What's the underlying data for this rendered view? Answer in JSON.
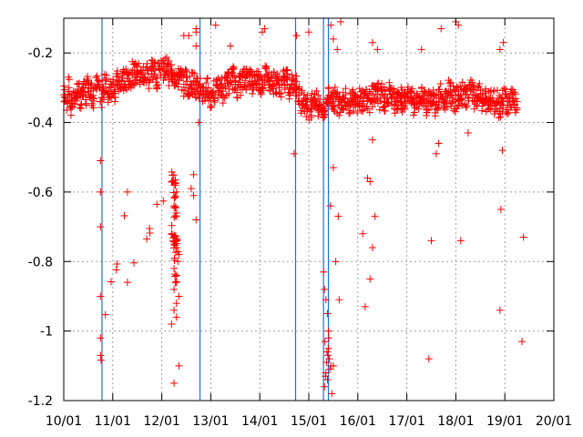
{
  "chart_data": {
    "type": "scatter",
    "title": "",
    "xlabel": "",
    "ylabel": "",
    "xlim": [
      "10/01",
      "20/01"
    ],
    "ylim": [
      -1.2,
      -0.1
    ],
    "x_ticks": [
      "10/01",
      "11/01",
      "12/01",
      "13/01",
      "14/01",
      "15/01",
      "16/01",
      "17/01",
      "18/01",
      "19/01",
      "20/01"
    ],
    "y_ticks": [
      -0.2,
      -0.4,
      -0.6,
      -0.8,
      -1,
      -1.2
    ],
    "y_tick_labels": [
      "-0.2",
      "-0.4",
      "-0.6",
      "-0.8",
      "-1",
      "-1.2"
    ],
    "grid": true,
    "marker": "+",
    "series": [
      {
        "color": "#ff0000",
        "values_x_day": [
          10.0,
          10.05,
          10.1,
          10.15,
          10.2,
          10.25,
          10.3,
          10.35,
          10.4,
          10.45,
          10.5,
          10.55,
          10.6,
          10.65,
          10.7,
          10.75,
          10.8,
          10.85,
          10.9,
          10.95,
          11.0,
          11.05,
          11.1,
          11.15,
          11.2,
          11.25,
          11.3,
          11.35,
          11.4,
          11.45,
          11.5,
          11.55,
          11.6,
          11.65,
          11.7,
          11.75,
          11.8,
          11.85,
          11.9,
          11.95,
          12.0,
          12.05,
          12.1,
          12.15,
          12.2,
          12.25,
          12.3,
          12.35,
          12.4,
          12.45,
          12.5,
          12.55,
          12.6,
          12.65,
          12.7,
          12.75,
          12.8,
          12.85,
          12.9,
          12.95,
          13.0,
          13.05,
          13.1,
          13.15,
          13.2,
          13.25,
          13.3,
          13.35,
          13.4,
          13.45,
          13.5,
          13.55,
          13.6,
          13.65,
          13.7,
          13.75,
          13.8,
          13.85,
          13.9,
          13.95,
          14.0,
          14.05,
          14.1,
          14.15,
          14.2,
          14.25,
          14.3,
          14.35,
          14.4,
          14.45,
          14.5,
          14.55,
          14.6,
          14.65,
          14.7,
          14.75,
          14.8,
          14.85,
          14.9,
          14.95,
          15.0,
          15.05,
          15.1,
          15.15,
          15.2,
          15.25,
          15.3,
          15.35,
          15.4,
          15.45,
          15.5,
          15.55,
          15.6,
          15.65,
          15.7,
          15.75,
          15.8,
          15.85,
          15.9,
          15.95,
          16.0,
          16.05,
          16.1,
          16.15,
          16.2,
          16.25,
          16.3,
          16.35,
          16.4,
          16.45,
          16.5,
          16.55,
          16.6,
          16.65,
          16.7,
          16.75,
          16.8,
          16.85,
          16.9,
          16.95,
          17.0,
          17.05,
          17.1,
          17.15,
          17.2,
          17.25,
          17.3,
          17.35,
          17.4,
          17.45,
          17.5,
          17.55,
          17.6,
          17.65,
          17.7,
          17.75,
          17.8,
          17.85,
          17.9,
          17.95,
          18.0,
          18.05,
          18.1,
          18.15,
          18.2,
          18.25,
          18.3,
          18.35,
          18.4,
          18.45,
          18.5,
          18.55,
          18.6,
          18.65,
          18.7,
          18.75,
          18.8,
          18.85,
          18.9,
          18.95,
          19.0,
          19.05,
          19.1,
          19.15,
          19.2,
          19.25,
          10.75,
          10.75,
          10.75,
          10.75,
          10.75,
          10.75,
          11.3,
          11.3,
          12.2,
          12.25,
          12.3,
          12.25,
          12.3,
          12.2,
          12.25,
          12.3,
          12.35,
          12.25,
          12.3,
          12.3,
          12.25,
          12.35,
          12.3,
          12.25,
          12.3,
          12.2,
          12.35,
          12.25,
          12.3,
          12.45,
          12.6,
          12.65,
          12.7,
          12.7,
          12.7,
          12.75,
          12.65,
          15.3,
          15.32,
          15.35,
          15.38,
          15.4,
          15.33,
          15.37,
          15.42,
          15.45,
          15.35,
          15.38,
          15.32,
          15.4,
          15.36,
          15.43,
          15.34,
          15.39,
          15.41,
          15.47,
          15.5,
          15.55,
          15.6,
          15.62,
          15.44,
          15.5,
          15.58,
          14.7,
          14.75,
          16.1,
          16.15,
          16.2,
          16.25,
          16.3,
          16.35,
          16.4,
          16.25,
          16.3,
          17.4,
          17.45,
          17.5,
          17.6,
          17.65,
          17.7,
          18.05,
          18.1,
          18.25,
          18.9,
          18.92,
          18.95,
          18.9,
          18.97,
          19.35,
          19.38,
          12.55,
          12.7,
          13.1,
          13.4,
          14.05,
          14.1,
          15.0,
          15.45,
          15.5,
          15.65,
          16.3,
          17.3,
          18.0
        ],
        "values_y": [
          -0.32,
          -0.34,
          -0.3,
          -0.36,
          -0.31,
          -0.33,
          -0.29,
          -0.35,
          -0.3,
          -0.32,
          -0.28,
          -0.31,
          -0.33,
          -0.3,
          -0.29,
          -0.34,
          -0.31,
          -0.28,
          -0.32,
          -0.3,
          -0.29,
          -0.31,
          -0.28,
          -0.3,
          -0.27,
          -0.29,
          -0.26,
          -0.28,
          -0.25,
          -0.27,
          -0.24,
          -0.28,
          -0.26,
          -0.27,
          -0.25,
          -0.28,
          -0.24,
          -0.26,
          -0.27,
          -0.25,
          -0.23,
          -0.25,
          -0.24,
          -0.26,
          -0.25,
          -0.27,
          -0.26,
          -0.28,
          -0.27,
          -0.29,
          -0.27,
          -0.3,
          -0.29,
          -0.28,
          -0.3,
          -0.31,
          -0.3,
          -0.32,
          -0.31,
          -0.3,
          -0.33,
          -0.31,
          -0.32,
          -0.3,
          -0.29,
          -0.31,
          -0.3,
          -0.28,
          -0.29,
          -0.27,
          -0.28,
          -0.3,
          -0.29,
          -0.27,
          -0.28,
          -0.26,
          -0.27,
          -0.29,
          -0.28,
          -0.27,
          -0.29,
          -0.28,
          -0.27,
          -0.26,
          -0.28,
          -0.27,
          -0.29,
          -0.28,
          -0.3,
          -0.29,
          -0.28,
          -0.27,
          -0.3,
          -0.29,
          -0.28,
          -0.3,
          -0.32,
          -0.34,
          -0.33,
          -0.35,
          -0.36,
          -0.35,
          -0.33,
          -0.34,
          -0.36,
          -0.35,
          -0.37,
          -0.34,
          -0.33,
          -0.32,
          -0.34,
          -0.33,
          -0.35,
          -0.34,
          -0.33,
          -0.32,
          -0.34,
          -0.35,
          -0.33,
          -0.34,
          -0.35,
          -0.33,
          -0.34,
          -0.32,
          -0.33,
          -0.34,
          -0.32,
          -0.33,
          -0.31,
          -0.33,
          -0.32,
          -0.34,
          -0.33,
          -0.31,
          -0.32,
          -0.34,
          -0.33,
          -0.32,
          -0.34,
          -0.33,
          -0.32,
          -0.34,
          -0.33,
          -0.35,
          -0.32,
          -0.34,
          -0.33,
          -0.31,
          -0.34,
          -0.33,
          -0.32,
          -0.34,
          -0.35,
          -0.33,
          -0.32,
          -0.34,
          -0.33,
          -0.31,
          -0.32,
          -0.33,
          -0.34,
          -0.32,
          -0.33,
          -0.31,
          -0.32,
          -0.33,
          -0.31,
          -0.32,
          -0.34,
          -0.33,
          -0.32,
          -0.34,
          -0.33,
          -0.35,
          -0.34,
          -0.33,
          -0.35,
          -0.34,
          -0.36,
          -0.34,
          -0.33,
          -0.35,
          -0.34,
          -0.32,
          -0.35,
          -0.34,
          -0.51,
          -0.6,
          -0.7,
          -0.9,
          -1.02,
          -1.07,
          -0.6,
          -0.86,
          -0.57,
          -0.58,
          -0.6,
          -0.64,
          -0.66,
          -0.72,
          -0.75,
          -0.76,
          -0.78,
          -0.82,
          -0.84,
          -0.86,
          -0.88,
          -0.9,
          -0.92,
          -0.94,
          -0.96,
          -0.98,
          -1.1,
          -1.15,
          -0.67,
          -0.15,
          -0.59,
          -0.61,
          -0.68,
          -0.18,
          -0.14,
          -0.4,
          -0.55,
          -0.83,
          -0.88,
          -0.91,
          -0.95,
          -1.0,
          -1.03,
          -1.06,
          -1.08,
          -1.1,
          -1.12,
          -1.14,
          -1.16,
          -1.05,
          -1.09,
          -1.11,
          -1.13,
          -1.07,
          -1.02,
          -1.18,
          -1.1,
          -0.8,
          -0.67,
          -0.91,
          -0.64,
          -0.53,
          -0.19,
          -0.49,
          -0.15,
          -0.72,
          -0.93,
          -0.56,
          -0.85,
          -0.76,
          -0.67,
          -0.19,
          -0.57,
          -0.45,
          -0.38,
          -1.08,
          -0.74,
          -0.49,
          -0.46,
          -0.13,
          -0.12,
          -0.74,
          -0.43,
          -0.94,
          -0.65,
          -0.48,
          -0.19,
          -0.17,
          -1.03,
          -0.73,
          -0.15,
          -0.13,
          -0.12,
          -0.18,
          -0.14,
          -0.13,
          -0.14,
          -0.12,
          -0.16,
          -0.11,
          -0.17,
          -0.19,
          -0.11
        ]
      }
    ],
    "vertical_lines_day": [
      10.78,
      12.78,
      14.73,
      15.3,
      15.4
    ],
    "vertical_line_color": "#1a73d9"
  }
}
